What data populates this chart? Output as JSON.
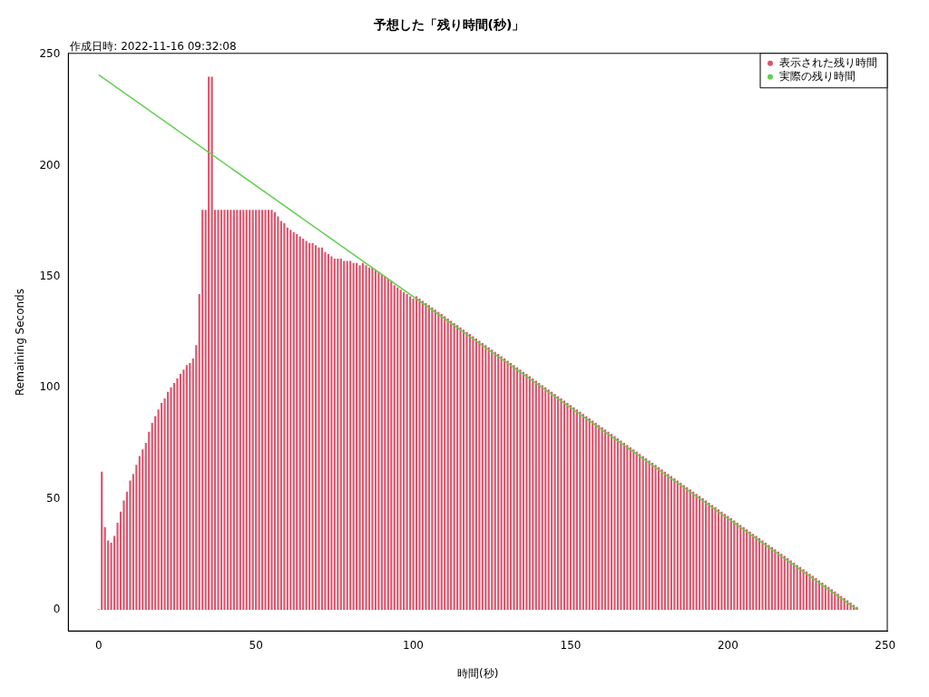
{
  "chart_data": {
    "type": "bar",
    "title": "予想した「残り時間(秒)」",
    "xlabel": "時間(秒)",
    "ylabel": "Remaining Seconds",
    "annotations": [
      "作成日時: 2022-11-16 09:32:08"
    ],
    "xlim": [
      -9.64,
      250.64
    ],
    "xticks": [
      0,
      50,
      100,
      150,
      200,
      250
    ],
    "ylim": [
      -9.64,
      250.64
    ],
    "yticks": [
      0,
      50,
      100,
      150,
      200,
      250
    ],
    "legend": "top right",
    "series": [
      {
        "name": "表示された残り時間",
        "color": "#df536b",
        "x": [
          0,
          1,
          2,
          3,
          4,
          5,
          6,
          7,
          8,
          9,
          10,
          11,
          12,
          13,
          14,
          15,
          16,
          17,
          18,
          19,
          20,
          21,
          22,
          23,
          24,
          25,
          26,
          27,
          28,
          29,
          30,
          31,
          32,
          33,
          34,
          35,
          36,
          37,
          38,
          39,
          40,
          41,
          42,
          43,
          44,
          45,
          46,
          47,
          48,
          49,
          50,
          51,
          52,
          53,
          54,
          55,
          56,
          57,
          58,
          59,
          60,
          61,
          62,
          63,
          64,
          65,
          66,
          67,
          68,
          69,
          70,
          71,
          72,
          73,
          74,
          75,
          76,
          77,
          78,
          79,
          80,
          81,
          82,
          83,
          84,
          85,
          86,
          87,
          88,
          89,
          90,
          91,
          92,
          93,
          94,
          95,
          96,
          97,
          98,
          99,
          100,
          101,
          102,
          103,
          104,
          105,
          106,
          107,
          108,
          109,
          110,
          111,
          112,
          113,
          114,
          115,
          116,
          117,
          118,
          119,
          120,
          121,
          122,
          123,
          124,
          125,
          126,
          127,
          128,
          129,
          130,
          131,
          132,
          133,
          134,
          135,
          136,
          137,
          138,
          139,
          140,
          141,
          142,
          143,
          144,
          145,
          146,
          147,
          148,
          149,
          150,
          151,
          152,
          153,
          154,
          155,
          156,
          157,
          158,
          159,
          160,
          161,
          162,
          163,
          164,
          165,
          166,
          167,
          168,
          169,
          170,
          171,
          172,
          173,
          174,
          175,
          176,
          177,
          178,
          179,
          180,
          181,
          182,
          183,
          184,
          185,
          186,
          187,
          188,
          189,
          190,
          191,
          192,
          193,
          194,
          195,
          196,
          197,
          198,
          199,
          200,
          201,
          202,
          203,
          204,
          205,
          206,
          207,
          208,
          209,
          210,
          211,
          212,
          213,
          214,
          215,
          216,
          217,
          218,
          219,
          220,
          221,
          222,
          223,
          224,
          225,
          226,
          227,
          228,
          229,
          230,
          231,
          232,
          233,
          234,
          235,
          236,
          237,
          238,
          239,
          240,
          241
        ],
        "values": [
          0,
          62,
          37,
          31,
          30,
          33,
          39,
          44,
          49,
          53,
          58,
          61,
          65,
          69,
          72,
          75,
          80,
          84,
          87,
          90,
          93,
          95,
          98,
          100,
          102,
          104,
          106,
          108,
          110,
          111,
          113,
          119,
          142,
          180,
          180,
          240,
          240,
          180,
          180,
          180,
          180,
          180,
          180,
          180,
          180,
          180,
          180,
          180,
          180,
          180,
          180,
          180,
          180,
          180,
          180,
          180,
          179,
          177,
          175,
          174,
          172,
          171,
          170,
          169,
          168,
          167,
          166,
          165,
          165,
          164,
          163,
          163,
          161,
          160,
          159,
          158,
          158,
          158,
          157,
          157,
          157,
          156,
          156,
          155,
          156,
          155,
          154,
          154,
          153,
          152,
          151,
          150,
          149,
          148,
          146,
          145,
          144,
          143,
          142,
          141,
          140,
          141,
          140,
          139,
          138,
          137,
          136,
          135,
          134,
          133,
          132,
          131,
          130,
          129,
          128,
          127,
          126,
          125,
          124,
          123,
          122,
          121,
          120,
          119,
          118,
          117,
          116,
          115,
          114,
          113,
          112,
          111,
          110,
          109,
          108,
          107,
          106,
          105,
          104,
          103,
          102,
          101,
          100,
          99,
          98,
          97,
          96,
          95,
          94,
          93,
          92,
          91,
          90,
          89,
          88,
          87,
          86,
          85,
          84,
          83,
          82,
          81,
          80,
          79,
          78,
          77,
          76,
          75,
          74,
          73,
          72,
          71,
          70,
          69,
          68,
          67,
          66,
          65,
          64,
          63,
          62,
          61,
          60,
          59,
          58,
          57,
          56,
          55,
          54,
          53,
          52,
          51,
          50,
          49,
          48,
          47,
          46,
          45,
          44,
          43,
          42,
          41,
          40,
          39,
          38,
          37,
          36,
          35,
          34,
          33,
          32,
          31,
          30,
          29,
          28,
          27,
          26,
          25,
          24,
          23,
          22,
          21,
          20,
          19,
          18,
          17,
          16,
          15,
          14,
          13,
          12,
          11,
          10,
          9,
          8,
          7,
          6,
          5,
          4,
          3,
          2,
          1
        ]
      },
      {
        "name": "実際の残り時間",
        "type": "line",
        "color": "#61d04f",
        "x": [
          0,
          241
        ],
        "values": [
          241,
          0
        ]
      }
    ]
  }
}
